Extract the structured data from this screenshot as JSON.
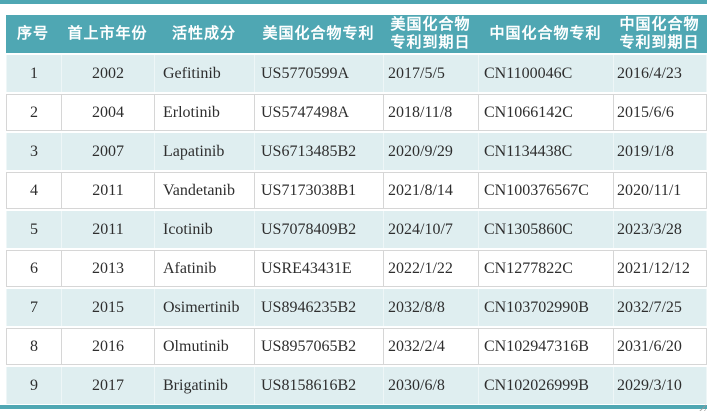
{
  "table": {
    "columns": [
      {
        "id": "index",
        "lines": [
          "序号"
        ]
      },
      {
        "id": "first-market-year",
        "lines": [
          "首上市年份"
        ]
      },
      {
        "id": "active-ingredient",
        "lines": [
          "活性成分"
        ]
      },
      {
        "id": "us-compound-patent",
        "lines": [
          "美国化合物专利"
        ]
      },
      {
        "id": "us-patent-expiry",
        "lines": [
          "美国化合物",
          "专利到期日"
        ]
      },
      {
        "id": "cn-compound-patent",
        "lines": [
          "中国化合物专利"
        ]
      },
      {
        "id": "cn-patent-expiry",
        "lines": [
          "中国化合物",
          "专利到期日"
        ]
      }
    ],
    "rows": [
      [
        "1",
        "2002",
        "Gefitinib",
        "US5770599A",
        "2017/5/5",
        "CN1100046C",
        "2016/4/23"
      ],
      [
        "2",
        "2004",
        "Erlotinib",
        "US5747498A",
        "2018/11/8",
        "CN1066142C",
        "2015/6/6"
      ],
      [
        "3",
        "2007",
        "Lapatinib",
        "US6713485B2",
        "2020/9/29",
        "CN1134438C",
        "2019/1/8"
      ],
      [
        "4",
        "2011",
        "Vandetanib",
        "US7173038B1",
        "2021/8/14",
        "CN100376567C",
        "2020/11/1"
      ],
      [
        "5",
        "2011",
        "Icotinib",
        "US7078409B2",
        "2024/10/7",
        "CN1305860C",
        "2023/3/28"
      ],
      [
        "6",
        "2013",
        "Afatinib",
        "USRE43431E",
        "2022/1/22",
        "CN1277822C",
        "2021/12/12"
      ],
      [
        "7",
        "2015",
        "Osimertinib",
        "US8946235B2",
        "2032/8/8",
        "CN103702990B",
        "2032/7/25"
      ],
      [
        "8",
        "2016",
        "Olmutinib",
        "US8957065B2",
        "2032/2/4",
        "CN102947316B",
        "2031/6/20"
      ],
      [
        "9",
        "2017",
        "Brigatinib",
        "US8158616B2",
        "2030/6/8",
        "CN102026999B",
        "2029/3/10"
      ]
    ],
    "colors": {
      "header_bg": "#4fa7b3",
      "row_alt_bg": "#dfeef0",
      "row_bg": "#ffffff",
      "border": "#d6d6d6",
      "text": "#2e2e2e",
      "header_text": "#ffffff"
    }
  }
}
